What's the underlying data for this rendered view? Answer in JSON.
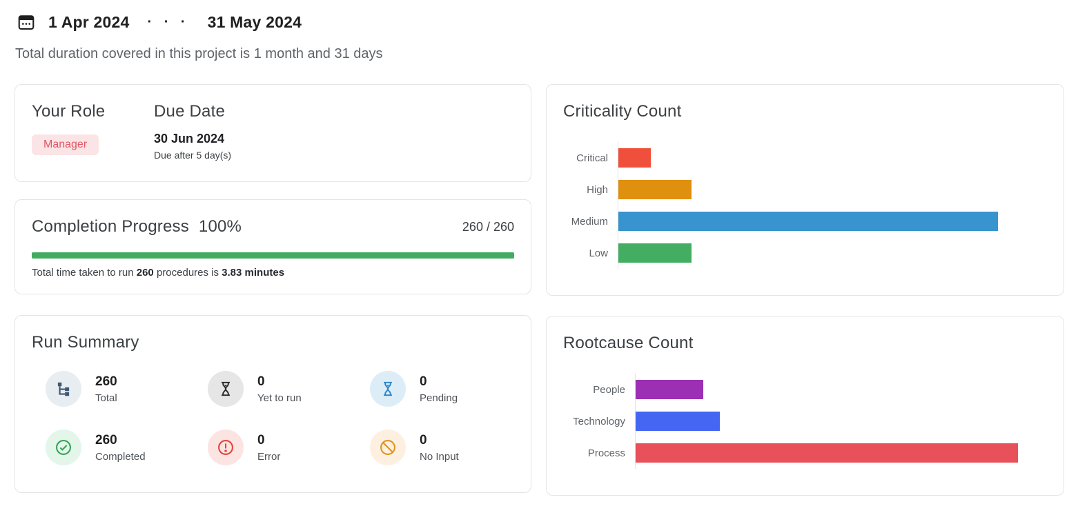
{
  "header": {
    "start_date": "1 Apr 2024",
    "separator": "· · ·",
    "end_date": "31 May 2024",
    "subtitle": "Total duration covered in this project is 1 month and 31 days"
  },
  "role_card": {
    "role_title": "Your Role",
    "role_value": "Manager",
    "badge_bg": "#fbe4e6",
    "badge_color": "#e25563",
    "due_title": "Due Date",
    "due_date": "30 Jun 2024",
    "due_note": "Due after 5 day(s)"
  },
  "progress_card": {
    "title": "Completion Progress",
    "percent": "100%",
    "percent_value": 100,
    "ratio": "260 / 260",
    "bar_color": "#42ab5f",
    "note_prefix": "Total time taken to run ",
    "note_count": "260",
    "note_mid": " procedures is ",
    "note_time": "3.83 minutes"
  },
  "run_summary": {
    "title": "Run Summary",
    "stats": [
      {
        "value": "260",
        "label": "Total",
        "icon": "tree-icon",
        "circle_bg": "#e8edf2",
        "icon_color": "#3f5873"
      },
      {
        "value": "0",
        "label": "Yet to run",
        "icon": "hourglass-icon",
        "circle_bg": "#e6e6e6",
        "icon_color": "#2b2b2b"
      },
      {
        "value": "0",
        "label": "Pending",
        "icon": "hourglass-icon",
        "circle_bg": "#ddedf8",
        "icon_color": "#2e86c8"
      },
      {
        "value": "260",
        "label": "Completed",
        "icon": "check-circle-icon",
        "circle_bg": "#e4f5e9",
        "icon_color": "#34a457"
      },
      {
        "value": "0",
        "label": "Error",
        "icon": "alert-circle-icon",
        "circle_bg": "#fce4e2",
        "icon_color": "#e2443a"
      },
      {
        "value": "0",
        "label": "No Input",
        "icon": "ban-icon",
        "circle_bg": "#fdf0e1",
        "icon_color": "#e0941b"
      }
    ]
  },
  "chart_data": [
    {
      "type": "bar",
      "orientation": "horizontal",
      "title": "Criticality Count",
      "categories": [
        "Critical",
        "High",
        "Medium",
        "Low"
      ],
      "values": [
        15,
        34,
        177,
        34
      ],
      "colors": [
        "#ef4f3b",
        "#e0900f",
        "#3794ce",
        "#43ad62"
      ],
      "xlim": [
        0,
        200
      ],
      "xlabel": "",
      "ylabel": "",
      "grid": false,
      "legend": false
    },
    {
      "type": "bar",
      "orientation": "horizontal",
      "title": "Rootcause Count",
      "categories": [
        "People",
        "Technology",
        "Process"
      ],
      "values": [
        33,
        41,
        186
      ],
      "colors": [
        "#9c2fb3",
        "#4466f2",
        "#e8505a"
      ],
      "xlim": [
        0,
        200
      ],
      "xlabel": "",
      "ylabel": "",
      "grid": false,
      "legend": false
    }
  ]
}
